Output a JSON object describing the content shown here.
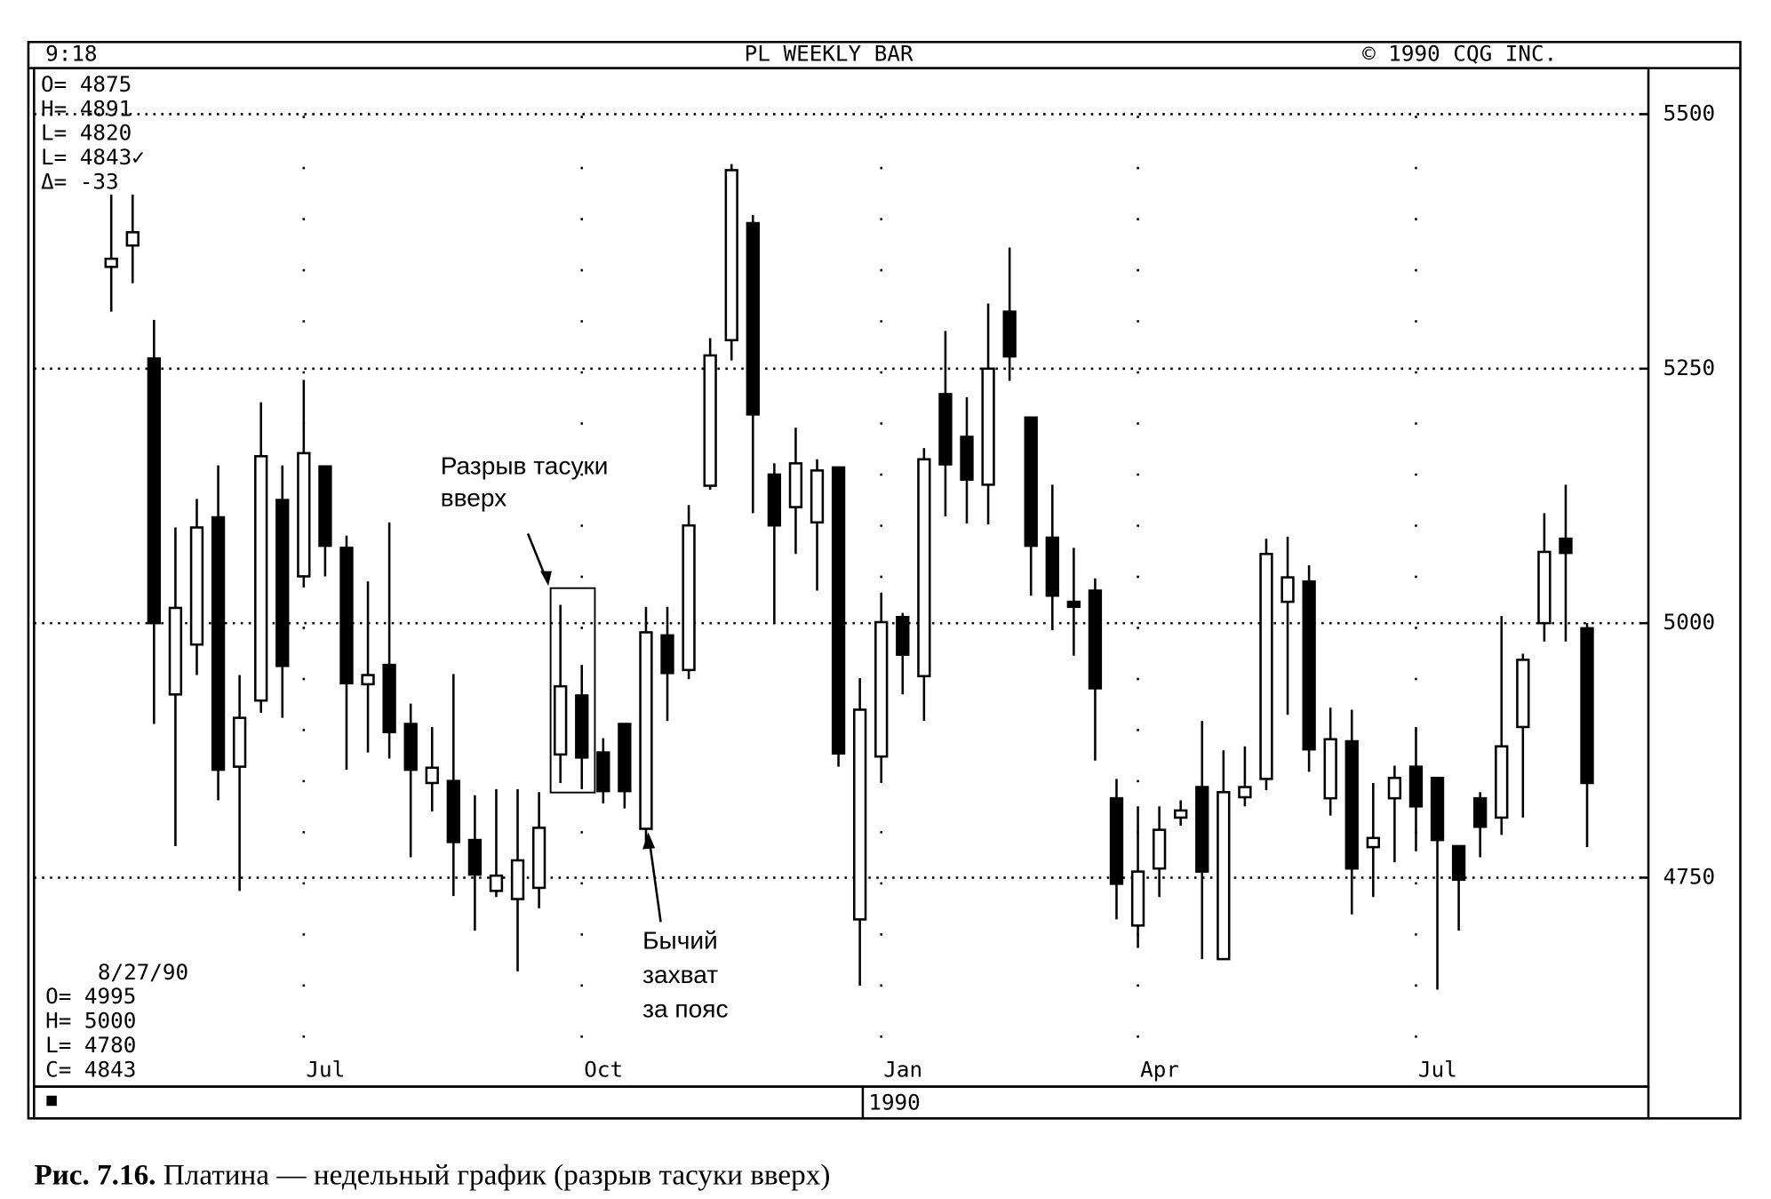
{
  "header": {
    "time": "9:18",
    "title": "PL WEEKLY BAR",
    "copyright": "© 1990 CQG INC."
  },
  "top_info": [
    "O= 4875",
    "H= 4891",
    "L= 4820",
    "L= 4843✓",
    "Δ=  -33"
  ],
  "bottom_info": [
    "8/27/90",
    "O=  4995",
    "H=  5000",
    "L=  4780",
    "C=  4843"
  ],
  "annotations": {
    "window": [
      "Разрыв тасуки",
      "вверх"
    ],
    "belt_hold": [
      "Бычий",
      "захват",
      "за пояс"
    ]
  },
  "year_label": "1990",
  "caption": {
    "number": "Рис. 7.16.",
    "text": "Платина — недельный график (разрыв тасуки вверх)"
  },
  "chart_data": {
    "type": "candlestick",
    "categories": [
      null,
      null,
      null,
      null,
      null,
      null,
      null,
      null,
      null,
      "Jul",
      null,
      null,
      null,
      null,
      null,
      null,
      null,
      null,
      null,
      null,
      null,
      null,
      "Oct",
      null,
      null,
      null,
      null,
      null,
      null,
      null,
      null,
      null,
      null,
      null,
      null,
      null,
      "Jan",
      null,
      null,
      null,
      null,
      null,
      null,
      null,
      null,
      null,
      null,
      null,
      "Apr",
      null,
      null,
      null,
      null,
      null,
      null,
      null,
      null,
      null,
      null,
      null,
      null,
      "Jul",
      null,
      null,
      null,
      null,
      null,
      null,
      null,
      null
    ],
    "open": [
      5350,
      5371,
      5260,
      4930,
      4979,
      5104,
      4859,
      4924,
      5121,
      5046,
      5154,
      5074,
      4940,
      4959,
      4901,
      4843,
      4845,
      4787,
      4737,
      4729,
      4740,
      4871,
      4929,
      4873,
      4901,
      4798,
      4988,
      4954,
      5135,
      5278,
      5393,
      5146,
      5114,
      5099,
      5153,
      4709,
      4869,
      5006,
      4948,
      5225,
      5183,
      5136,
      5306,
      5202,
      5084,
      5021,
      5032,
      4828,
      4703,
      4759,
      4809,
      4839,
      4670,
      4829,
      4847,
      5021,
      5041,
      4828,
      4884,
      4780,
      4828,
      4859,
      4848,
      4781,
      4828,
      4809,
      4898,
      5000,
      5083,
      4995
    ],
    "high": [
      5421,
      5421,
      5298,
      5094,
      5122,
      5155,
      4949,
      5217,
      5155,
      5239,
      5154,
      5086,
      5041,
      5099,
      4921,
      4898,
      4950,
      4831,
      4837,
      4837,
      4834,
      5018,
      4959,
      4887,
      4901,
      5016,
      5016,
      5116,
      5280,
      5451,
      5401,
      5157,
      5192,
      5161,
      5153,
      4946,
      5030,
      5010,
      5172,
      5287,
      5222,
      5314,
      5369,
      5202,
      5136,
      5074,
      5044,
      4847,
      4820,
      4820,
      4826,
      4904,
      4875,
      4879,
      5083,
      5085,
      5057,
      4917,
      4915,
      4843,
      4860,
      4898,
      4848,
      4781,
      4834,
      5007,
      4970,
      5108,
      5136,
      5000
    ],
    "low": [
      5306,
      5334,
      4901,
      4781,
      4949,
      4826,
      4737,
      4912,
      4907,
      5035,
      5046,
      4856,
      4873,
      4867,
      4770,
      4815,
      4732,
      4698,
      4731,
      4658,
      4720,
      4843,
      4837,
      4823,
      4818,
      4781,
      4904,
      4945,
      5131,
      5258,
      5108,
      4999,
      5068,
      5032,
      4859,
      4644,
      4843,
      4930,
      4904,
      5105,
      5098,
      5097,
      5238,
      5027,
      4993,
      4968,
      4865,
      4709,
      4681,
      4731,
      4801,
      4670,
      4670,
      4820,
      4836,
      4910,
      4854,
      4811,
      4714,
      4731,
      4765,
      4776,
      4640,
      4698,
      4770,
      4792,
      4809,
      4982,
      4982,
      4780
    ],
    "close": [
      5358,
      5384,
      5000,
      5015,
      5094,
      4856,
      4907,
      5164,
      4958,
      5167,
      5076,
      4941,
      4949,
      4893,
      4856,
      4858,
      4785,
      4753,
      4752,
      4767,
      4799,
      4938,
      4868,
      4835,
      4835,
      4991,
      4951,
      5096,
      5263,
      5445,
      5205,
      5096,
      5157,
      5150,
      4872,
      4915,
      5001,
      4969,
      5161,
      5156,
      5141,
      5250,
      5262,
      5076,
      5027,
      5016,
      4936,
      4744,
      4756,
      4797,
      4816,
      4756,
      4834,
      4839,
      5068,
      5045,
      4876,
      4886,
      4759,
      4789,
      4848,
      4820,
      4787,
      4748,
      4800,
      4879,
      4964,
      5070,
      5069,
      4843
    ],
    "up_color": "#ffffff",
    "down_color": "#000000",
    "ylim": [
      4547,
      5543
    ],
    "yticks": [
      5500,
      5250,
      5000,
      4750
    ],
    "grid": true
  }
}
